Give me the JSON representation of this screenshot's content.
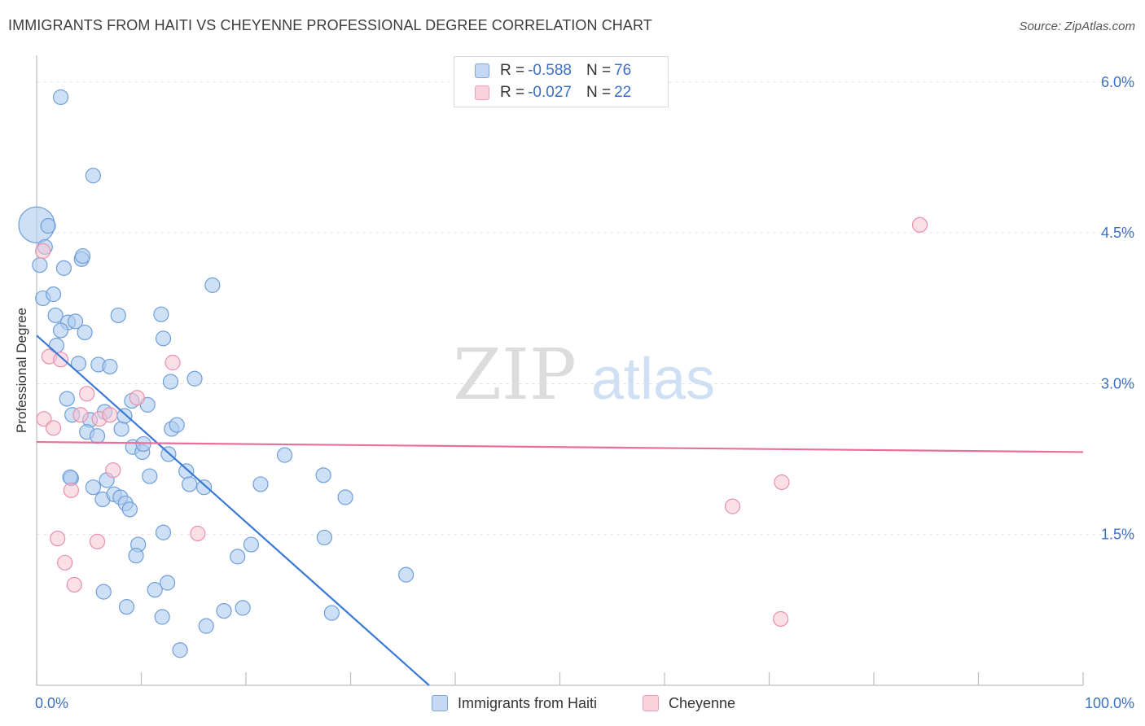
{
  "header": {
    "title": "IMMIGRANTS FROM HAITI VS CHEYENNE PROFESSIONAL DEGREE CORRELATION CHART",
    "source": "Source: ZipAtlas.com"
  },
  "watermark": {
    "zip": "ZIP",
    "atlas": "atlas"
  },
  "legend_top": {
    "rows": [
      {
        "r_label": "R =",
        "r_value": "-0.588",
        "n_label": "N =",
        "n_value": "76"
      },
      {
        "r_label": "R =",
        "r_value": "-0.027",
        "n_label": "N =",
        "n_value": "22"
      }
    ]
  },
  "legend_bottom": {
    "items": [
      {
        "label": "Immigrants from Haiti"
      },
      {
        "label": "Cheyenne"
      }
    ]
  },
  "colors": {
    "haiti_fill": "#aecbf0",
    "haiti_stroke": "#6f9ed8",
    "haiti_line": "#3a78d6",
    "cheyenne_fill": "#f8c4d3",
    "cheyenne_stroke": "#e890ac",
    "cheyenne_line": "#e8709a",
    "axis_text": "#3b6fc4",
    "grid": "#e3e3e3"
  },
  "chart_data": {
    "type": "scatter",
    "title": "IMMIGRANTS FROM HAITI VS CHEYENNE PROFESSIONAL DEGREE CORRELATION CHART",
    "xlabel": "",
    "ylabel": "Professional Degree",
    "xlim": [
      0,
      100
    ],
    "ylim": [
      0,
      6.25
    ],
    "x_tick_labels": [
      "0.0%",
      "100.0%"
    ],
    "y_ticks": [
      {
        "value": 1.5,
        "label": "1.5%"
      },
      {
        "value": 3.0,
        "label": "3.0%"
      },
      {
        "value": 4.5,
        "label": "4.5%"
      },
      {
        "value": 6.0,
        "label": "6.0%"
      }
    ],
    "grid": true,
    "series": [
      {
        "name": "Immigrants from Haiti",
        "r": -0.588,
        "n": 76,
        "trend": {
          "x": [
            0,
            37.5
          ],
          "y": [
            3.48,
            0.0
          ]
        },
        "points": [
          [
            0.0,
            4.58,
            22
          ],
          [
            2.3,
            5.85,
            9
          ],
          [
            5.4,
            5.07,
            9
          ],
          [
            0.8,
            4.36,
            9
          ],
          [
            1.1,
            4.57,
            9
          ],
          [
            0.3,
            4.18,
            9
          ],
          [
            2.6,
            4.15,
            9
          ],
          [
            4.3,
            4.24,
            9
          ],
          [
            4.4,
            4.27,
            9
          ],
          [
            16.8,
            3.98,
            9
          ],
          [
            0.6,
            3.85,
            9
          ],
          [
            1.6,
            3.89,
            9
          ],
          [
            1.8,
            3.68,
            9
          ],
          [
            3.0,
            3.61,
            9
          ],
          [
            3.7,
            3.62,
            9
          ],
          [
            7.8,
            3.68,
            9
          ],
          [
            11.9,
            3.69,
            9
          ],
          [
            1.9,
            3.38,
            9
          ],
          [
            2.3,
            3.53,
            9
          ],
          [
            4.6,
            3.51,
            9
          ],
          [
            12.1,
            3.45,
            9
          ],
          [
            4.0,
            3.2,
            9
          ],
          [
            5.9,
            3.19,
            9
          ],
          [
            7.0,
            3.17,
            9
          ],
          [
            12.8,
            3.02,
            9
          ],
          [
            15.1,
            3.05,
            9
          ],
          [
            2.9,
            2.85,
            9
          ],
          [
            3.4,
            2.69,
            9
          ],
          [
            6.5,
            2.72,
            9
          ],
          [
            9.1,
            2.83,
            9
          ],
          [
            10.6,
            2.79,
            9
          ],
          [
            5.1,
            2.64,
            9
          ],
          [
            4.8,
            2.52,
            9
          ],
          [
            5.8,
            2.48,
            9
          ],
          [
            8.1,
            2.55,
            9
          ],
          [
            8.4,
            2.68,
            9
          ],
          [
            12.9,
            2.55,
            9
          ],
          [
            13.4,
            2.59,
            9
          ],
          [
            9.2,
            2.37,
            9
          ],
          [
            10.1,
            2.32,
            9
          ],
          [
            10.2,
            2.4,
            9
          ],
          [
            12.6,
            2.3,
            9
          ],
          [
            23.7,
            2.29,
            9
          ],
          [
            14.3,
            2.13,
            9
          ],
          [
            3.3,
            2.06,
            9
          ],
          [
            6.7,
            2.04,
            9
          ],
          [
            10.8,
            2.08,
            9
          ],
          [
            27.4,
            2.09,
            9
          ],
          [
            5.4,
            1.97,
            9
          ],
          [
            14.6,
            2.0,
            9
          ],
          [
            16.0,
            1.97,
            9
          ],
          [
            21.4,
            2.0,
            9
          ],
          [
            29.5,
            1.87,
            9
          ],
          [
            6.3,
            1.85,
            9
          ],
          [
            7.4,
            1.9,
            9
          ],
          [
            8.0,
            1.87,
            9
          ],
          [
            8.5,
            1.81,
            9
          ],
          [
            8.9,
            1.75,
            9
          ],
          [
            12.1,
            1.52,
            9
          ],
          [
            27.5,
            1.47,
            9
          ],
          [
            9.7,
            1.4,
            9
          ],
          [
            20.5,
            1.4,
            9
          ],
          [
            9.5,
            1.29,
            9
          ],
          [
            19.2,
            1.28,
            9
          ],
          [
            35.3,
            1.1,
            9
          ],
          [
            11.3,
            0.95,
            9
          ],
          [
            12.5,
            1.02,
            9
          ],
          [
            6.4,
            0.93,
            9
          ],
          [
            8.6,
            0.78,
            9
          ],
          [
            12.0,
            0.68,
            9
          ],
          [
            17.9,
            0.74,
            9
          ],
          [
            19.7,
            0.77,
            9
          ],
          [
            28.2,
            0.72,
            9
          ],
          [
            16.2,
            0.59,
            9
          ],
          [
            13.7,
            0.35,
            9
          ],
          [
            3.2,
            2.07,
            9
          ]
        ]
      },
      {
        "name": "Cheyenne",
        "r": -0.027,
        "n": 22,
        "trend": {
          "x": [
            0,
            100
          ],
          "y": [
            2.42,
            2.32
          ]
        },
        "points": [
          [
            0.6,
            4.32,
            9
          ],
          [
            84.4,
            4.58,
            9
          ],
          [
            1.2,
            3.27,
            9
          ],
          [
            2.3,
            3.24,
            9
          ],
          [
            13.0,
            3.21,
            9
          ],
          [
            4.8,
            2.9,
            9
          ],
          [
            9.6,
            2.86,
            9
          ],
          [
            0.7,
            2.65,
            9
          ],
          [
            1.6,
            2.56,
            9
          ],
          [
            4.2,
            2.69,
            9
          ],
          [
            6.0,
            2.65,
            9
          ],
          [
            7.0,
            2.69,
            9
          ],
          [
            7.3,
            2.14,
            9
          ],
          [
            3.3,
            1.94,
            9
          ],
          [
            71.2,
            2.02,
            9
          ],
          [
            66.5,
            1.78,
            9
          ],
          [
            2.0,
            1.46,
            9
          ],
          [
            5.8,
            1.43,
            9
          ],
          [
            15.4,
            1.51,
            9
          ],
          [
            2.7,
            1.22,
            9
          ],
          [
            3.6,
            1.0,
            9
          ],
          [
            71.1,
            0.66,
            9
          ]
        ]
      }
    ]
  }
}
